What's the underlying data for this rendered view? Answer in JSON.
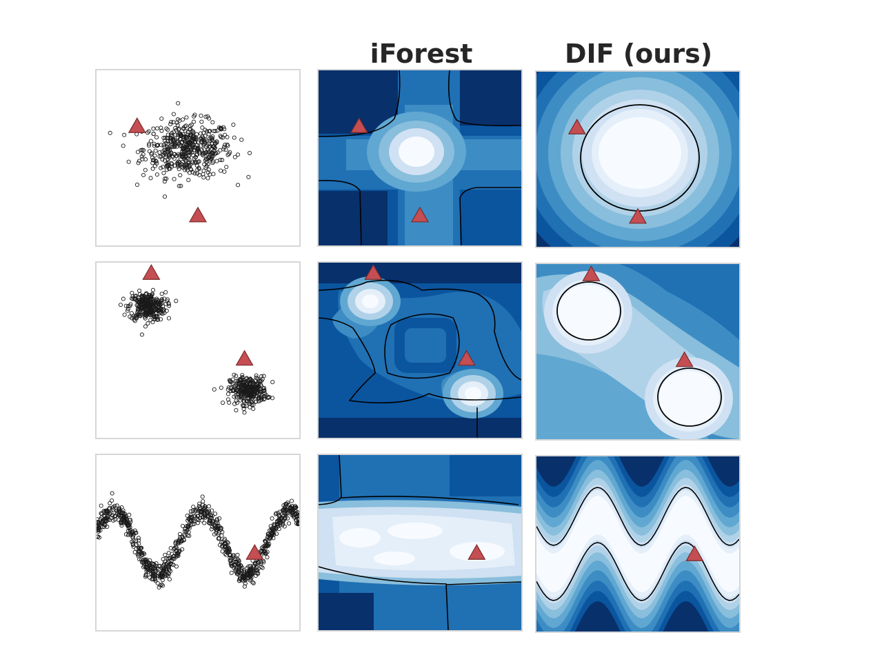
{
  "column_titles": [
    "iForest",
    "DIF (ours)"
  ],
  "colors": {
    "title_text": "#262626",
    "point_edge": "#1a1a1a",
    "anomaly_marker": "#c44e52",
    "anomaly_edge": "#7a2b2b",
    "contour_line": "#000000",
    "blues_colormap": [
      "#f7fbff",
      "#e5eff9",
      "#cfe1f2",
      "#b0d2e8",
      "#89bedc",
      "#60a7d2",
      "#3d8dc4",
      "#2070b4",
      "#0b559f",
      "#08306b"
    ]
  },
  "chart_data": [
    {
      "type": "scatter",
      "row": 1,
      "column": "data",
      "description_shape": "single gaussian cluster",
      "xlim": [
        0,
        1
      ],
      "ylim": [
        0,
        1
      ],
      "normal_points": {
        "distribution": "gaussian_blob",
        "count": 500,
        "center": [
          0.45,
          0.55
        ],
        "spread": [
          0.11,
          0.08
        ]
      },
      "anomalies": [
        {
          "x": 0.2,
          "y": 0.68
        },
        {
          "x": 0.5,
          "y": 0.17
        }
      ]
    },
    {
      "type": "heatmap",
      "row": 1,
      "column": "iForest",
      "xlim": [
        0,
        1
      ],
      "ylim": [
        0,
        1
      ],
      "colormap": "Blues_r",
      "anomalies": [
        {
          "x": 0.2,
          "y": 0.68
        },
        {
          "x": 0.5,
          "y": 0.17
        }
      ]
    },
    {
      "type": "heatmap",
      "row": 1,
      "column": "DIF (ours)",
      "xlim": [
        0,
        1
      ],
      "ylim": [
        0,
        1
      ],
      "colormap": "Blues_r",
      "anomalies": [
        {
          "x": 0.2,
          "y": 0.68
        },
        {
          "x": 0.5,
          "y": 0.17
        }
      ]
    },
    {
      "type": "scatter",
      "row": 2,
      "column": "data",
      "description_shape": "two gaussian clusters",
      "xlim": [
        0,
        1
      ],
      "ylim": [
        0,
        1
      ],
      "normal_points": [
        {
          "distribution": "gaussian_blob",
          "count": 300,
          "center": [
            0.25,
            0.75
          ],
          "spread": [
            0.045,
            0.04
          ]
        },
        {
          "distribution": "gaussian_blob",
          "count": 300,
          "center": [
            0.75,
            0.27
          ],
          "spread": [
            0.045,
            0.04
          ]
        }
      ],
      "anomalies": [
        {
          "x": 0.27,
          "y": 0.94
        },
        {
          "x": 0.73,
          "y": 0.45
        }
      ]
    },
    {
      "type": "heatmap",
      "row": 2,
      "column": "iForest",
      "xlim": [
        0,
        1
      ],
      "ylim": [
        0,
        1
      ],
      "colormap": "Blues_r",
      "anomalies": [
        {
          "x": 0.27,
          "y": 0.94
        },
        {
          "x": 0.73,
          "y": 0.45
        }
      ]
    },
    {
      "type": "heatmap",
      "row": 2,
      "column": "DIF (ours)",
      "xlim": [
        0,
        1
      ],
      "ylim": [
        0,
        1
      ],
      "colormap": "Blues_r",
      "anomalies": [
        {
          "x": 0.27,
          "y": 0.94
        },
        {
          "x": 0.73,
          "y": 0.45
        }
      ]
    },
    {
      "type": "scatter",
      "row": 3,
      "column": "data",
      "description_shape": "noisy sine wave",
      "xlim": [
        0,
        1
      ],
      "ylim": [
        0,
        1
      ],
      "normal_points": {
        "distribution": "sine_wave",
        "count": 900,
        "center_y": 0.5,
        "amplitude": 0.18,
        "periods": 2.3,
        "noise": 0.03
      },
      "anomalies": [
        {
          "x": 0.78,
          "y": 0.44
        }
      ]
    },
    {
      "type": "heatmap",
      "row": 3,
      "column": "iForest",
      "xlim": [
        0,
        1
      ],
      "ylim": [
        0,
        1
      ],
      "colormap": "Blues_r",
      "anomalies": [
        {
          "x": 0.78,
          "y": 0.44
        }
      ]
    },
    {
      "type": "heatmap",
      "row": 3,
      "column": "DIF (ours)",
      "xlim": [
        0,
        1
      ],
      "ylim": [
        0,
        1
      ],
      "colormap": "Blues_r",
      "anomalies": [
        {
          "x": 0.78,
          "y": 0.44
        }
      ]
    }
  ]
}
